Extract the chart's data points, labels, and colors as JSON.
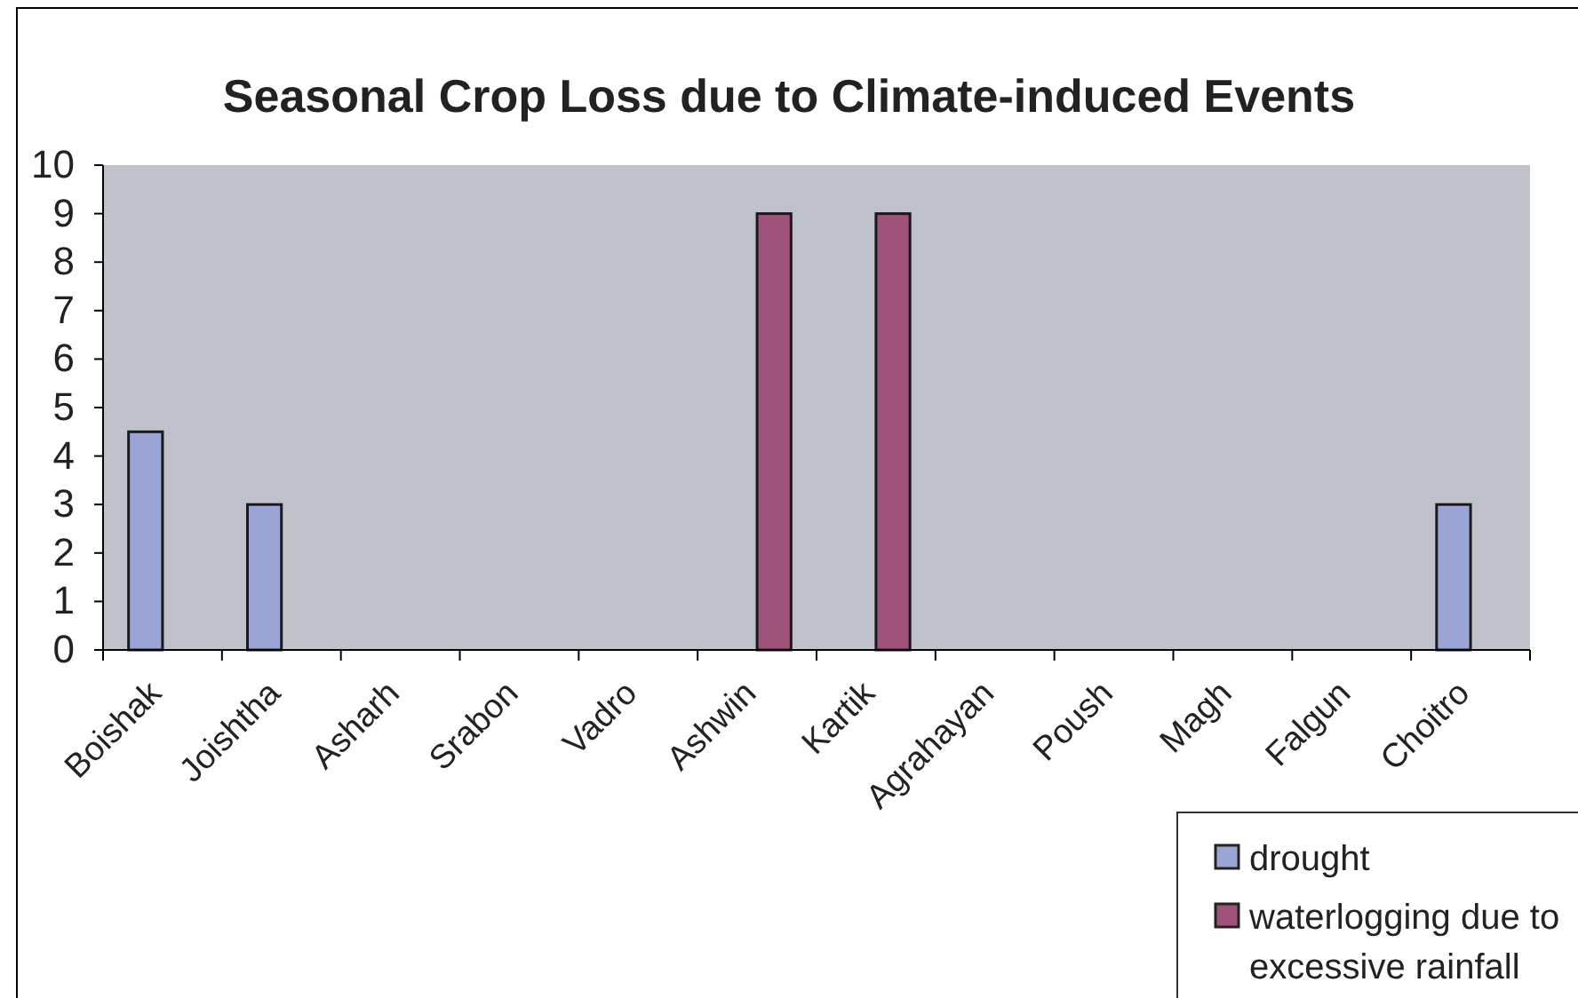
{
  "chart_data": {
    "type": "bar",
    "title": "Seasonal Crop Loss due to Climate-induced Events",
    "categories": [
      "Boishak",
      "Joishtha",
      "Asharh",
      "Srabon",
      "Vadro",
      "Ashwin",
      "Kartik",
      "Agrahayan",
      "Poush",
      "Magh",
      "Falgun",
      "Choitro"
    ],
    "series": [
      {
        "name": "drought",
        "color": "#9aa5d6",
        "values": [
          4.5,
          3,
          null,
          null,
          null,
          null,
          null,
          null,
          null,
          null,
          null,
          3
        ]
      },
      {
        "name": "waterlogging due to excessive rainfall",
        "color": "#a0537a",
        "values": [
          null,
          null,
          null,
          null,
          null,
          9,
          9,
          null,
          null,
          null,
          null,
          null
        ]
      }
    ],
    "ylim": [
      0,
      10
    ],
    "yticks": [
      0,
      1,
      2,
      3,
      4,
      5,
      6,
      7,
      8,
      9,
      10
    ],
    "grid": false,
    "legend": "bottom right"
  }
}
